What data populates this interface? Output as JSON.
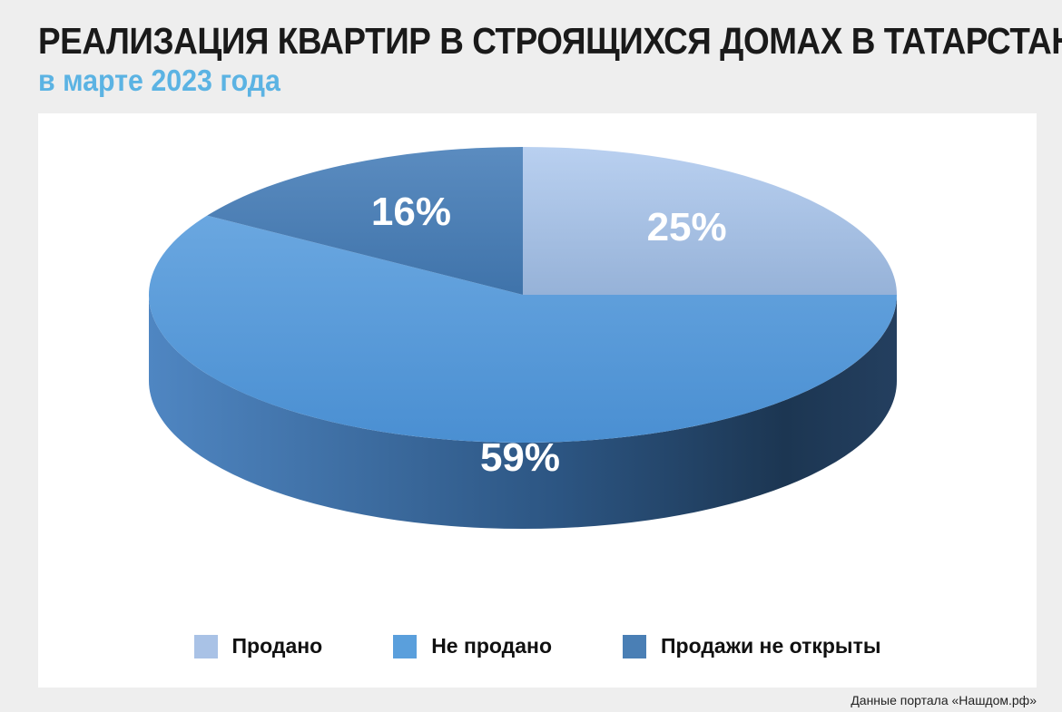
{
  "header": {
    "title": "РЕАЛИЗАЦИЯ КВАРТИР В СТРОЯЩИХСЯ ДОМАХ В ТАТАРСТАНЕ",
    "subtitle": "в марте 2023 года"
  },
  "chart_data": {
    "type": "pie",
    "categories": [
      "Продано",
      "Не продано",
      "Продажи не открыты"
    ],
    "values": [
      25,
      59,
      16
    ],
    "labels": [
      "25%",
      "59%",
      "16%"
    ],
    "colors": [
      "#a9c2e6",
      "#5a9fdc",
      "#4a7fb5"
    ],
    "legend_position": "bottom"
  },
  "source": "Данные портала «Нашдом.рф»"
}
